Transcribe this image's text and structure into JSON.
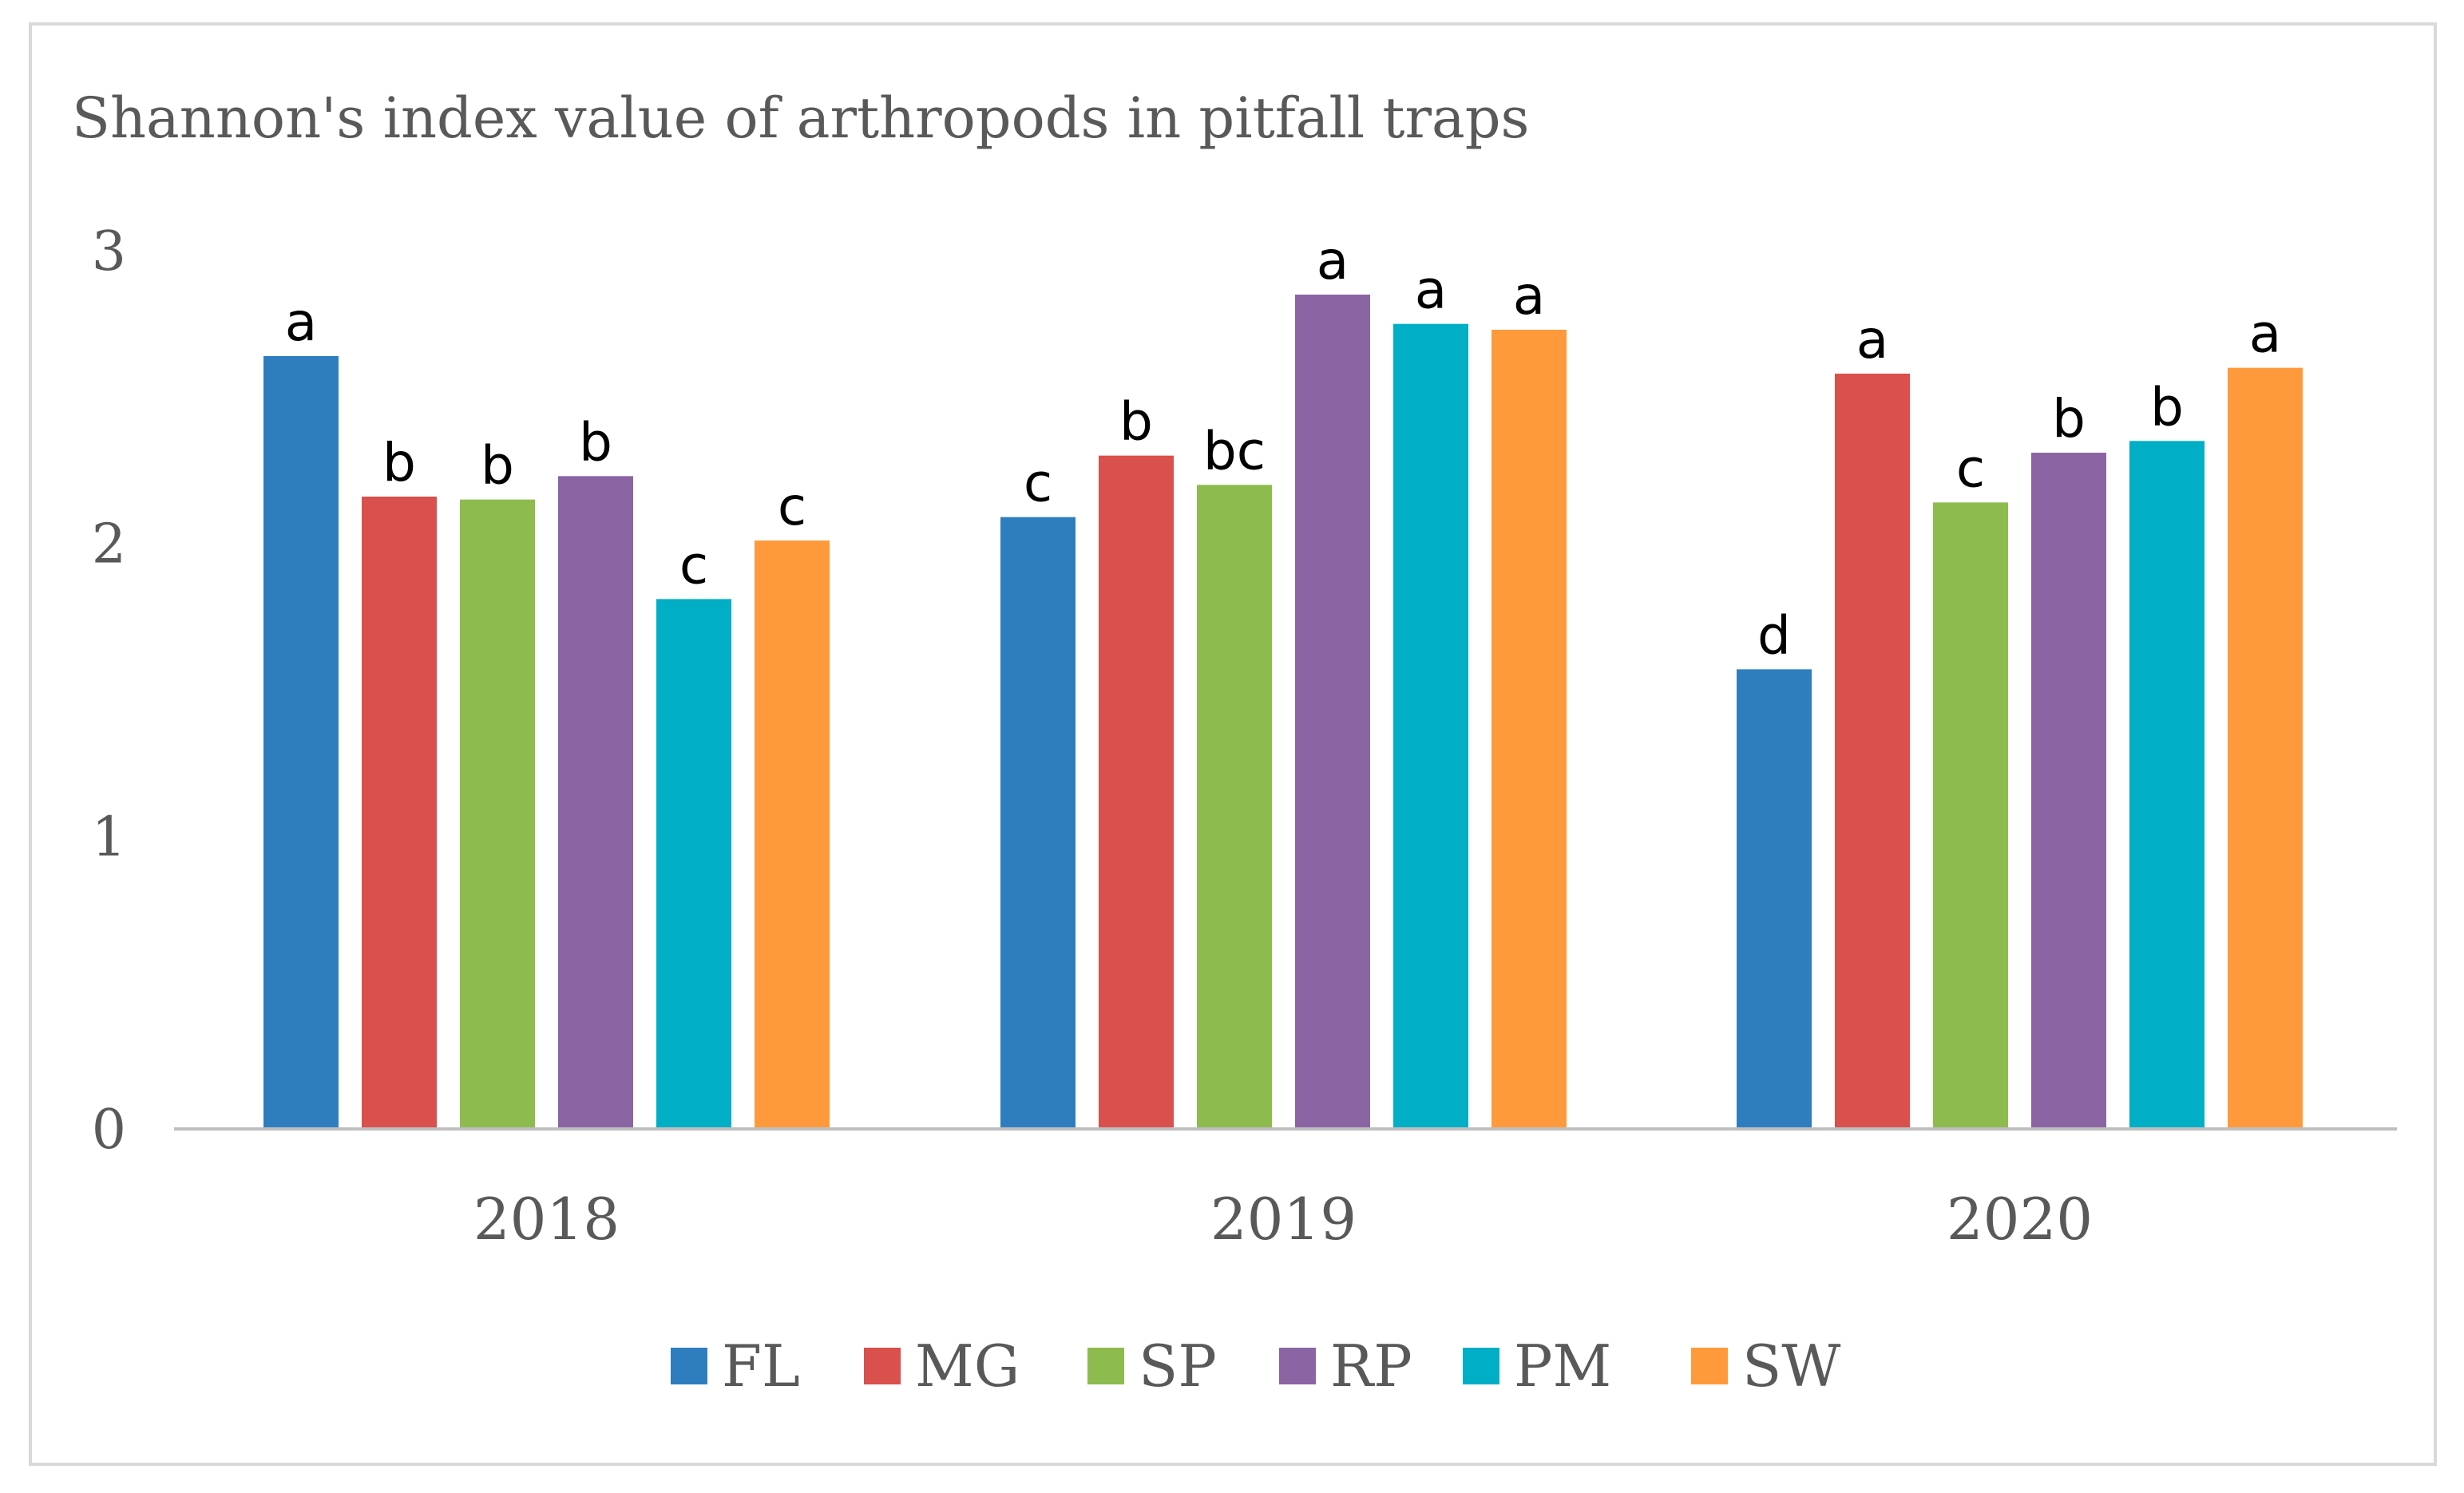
{
  "chart_data": {
    "type": "bar",
    "title": "Shannon's index value of arthropods in pitfall traps",
    "xlabel": "",
    "ylabel": "",
    "ylim": [
      0,
      3
    ],
    "yticks": [
      "0",
      "1",
      "2",
      "3"
    ],
    "grid": false,
    "legend_position": "bottom",
    "categories": [
      "2018",
      "2019",
      "2020"
    ],
    "series": [
      {
        "name": "FL",
        "color": "#2E7EBF",
        "values": [
          2.64,
          2.09,
          1.57
        ],
        "letters": [
          "a",
          "c",
          "d"
        ]
      },
      {
        "name": "MG",
        "color": "#D9504C",
        "values": [
          2.16,
          2.3,
          2.58
        ],
        "letters": [
          "b",
          "b",
          "a"
        ]
      },
      {
        "name": "SP",
        "color": "#8DBB4E",
        "values": [
          2.15,
          2.2,
          2.14
        ],
        "letters": [
          "b",
          "bc",
          "c"
        ]
      },
      {
        "name": "RP",
        "color": "#8B64A4",
        "values": [
          2.23,
          2.85,
          2.31
        ],
        "letters": [
          "b",
          "a",
          "b"
        ]
      },
      {
        "name": "PM",
        "color": "#00AEC5",
        "values": [
          1.81,
          2.75,
          2.35
        ],
        "letters": [
          "c",
          "a",
          "b"
        ]
      },
      {
        "name": "SW",
        "color": "#FF9A3C",
        "values": [
          2.01,
          2.73,
          2.6
        ],
        "letters": [
          "c",
          "a",
          "a"
        ]
      }
    ]
  }
}
